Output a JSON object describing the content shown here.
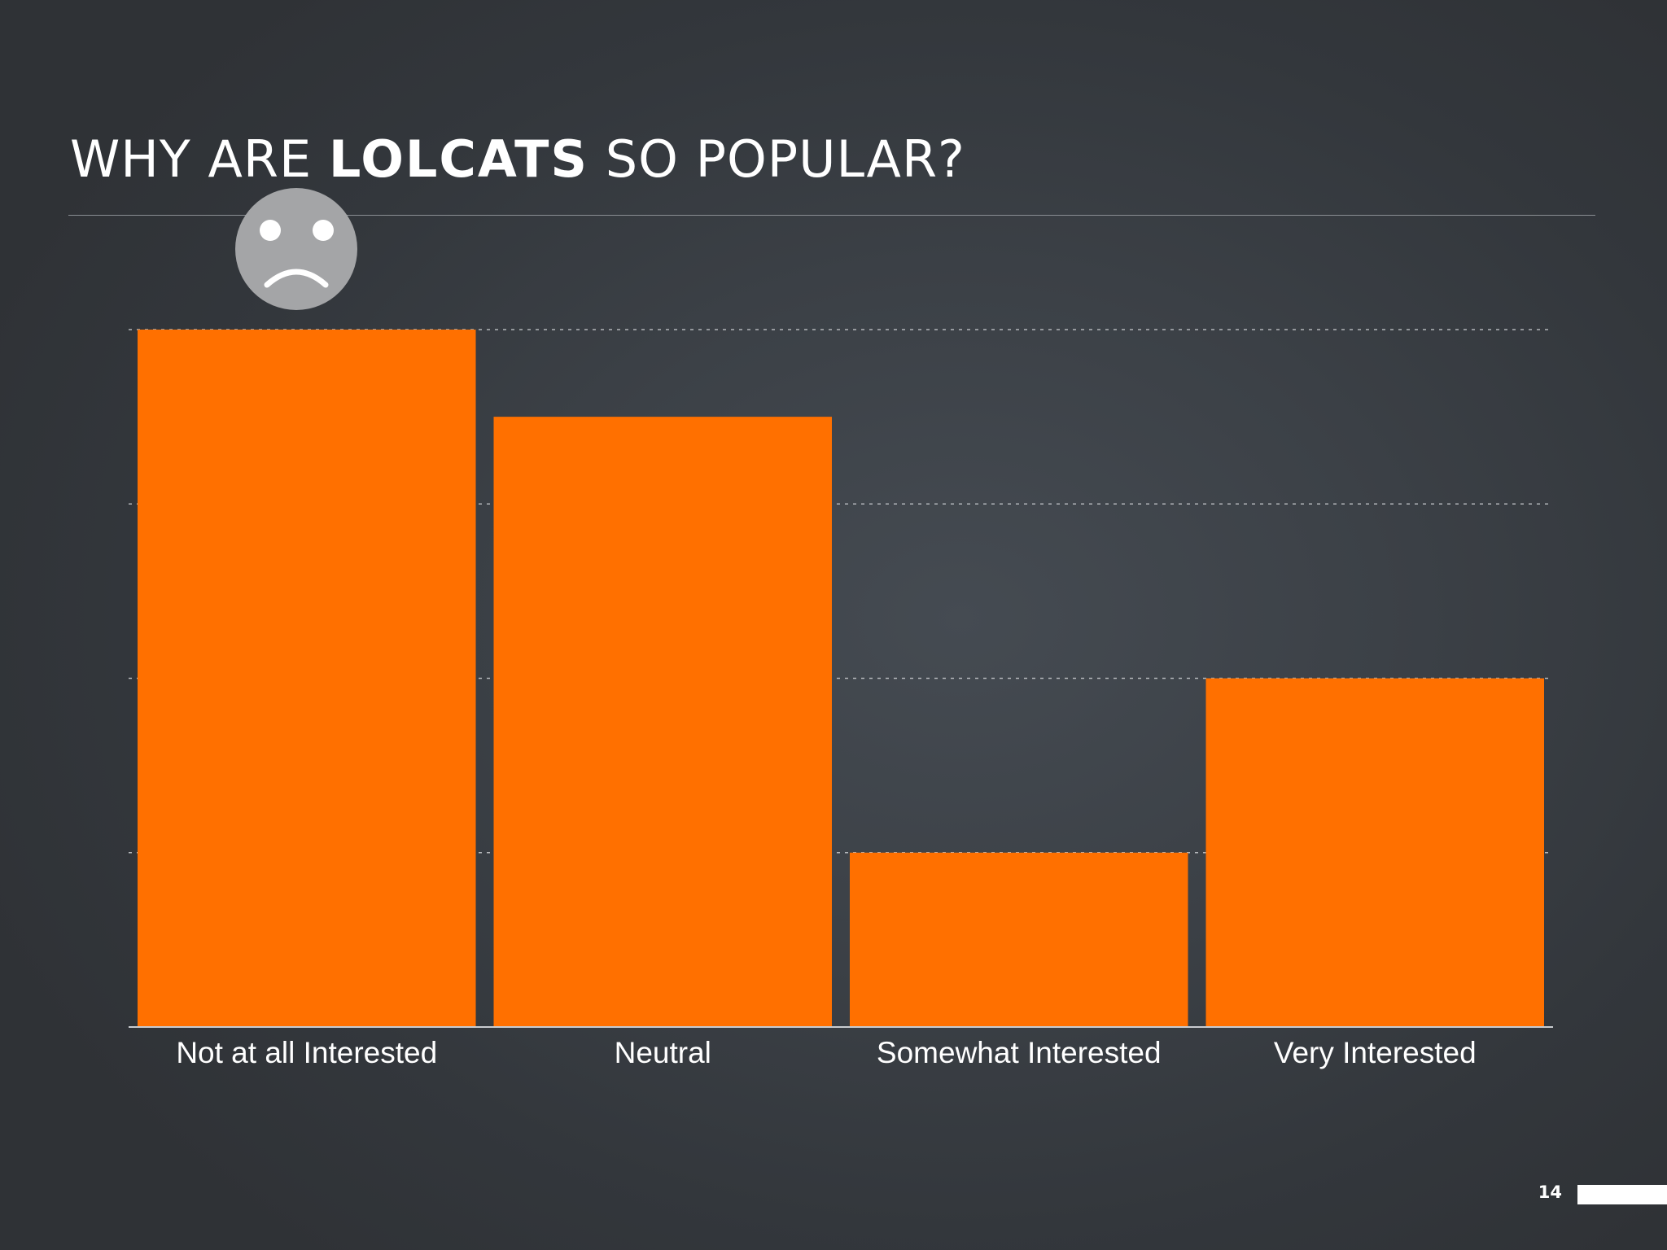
{
  "slide": {
    "title_normal_1": "WHY ARE ",
    "title_bold": "LOLCATS",
    "title_normal_2": " SO POPULAR?",
    "page_number": "14",
    "accent_color": "#ff7000",
    "icon": "sad-face-icon"
  },
  "chart_data": {
    "type": "bar",
    "title": "WHY ARE LOLCATS SO POPULAR?",
    "categories": [
      "Not at all Interested",
      "Neutral",
      "Somewhat Interested",
      "Very Interested"
    ],
    "values": [
      40,
      35,
      10,
      20
    ],
    "ylim": [
      0,
      40
    ],
    "yticks": [
      0,
      10,
      20,
      30,
      40
    ],
    "grid": true,
    "legend": "none",
    "bar_color": "#ff7000",
    "xlabel": "",
    "ylabel": ""
  }
}
